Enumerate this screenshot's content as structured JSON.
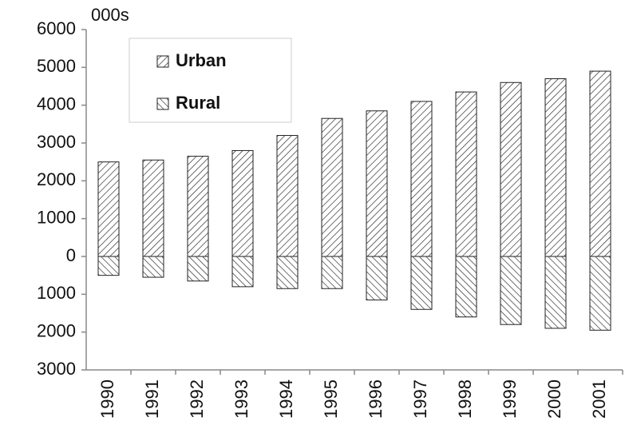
{
  "chart_data": {
    "type": "bar",
    "y_label": "000s",
    "categories": [
      "1990",
      "1991",
      "1992",
      "1993",
      "1994",
      "1995",
      "1996",
      "1997",
      "1998",
      "1999",
      "2000",
      "2001"
    ],
    "series": [
      {
        "name": "Urban",
        "color": "#222222",
        "values": [
          2500,
          2550,
          2650,
          2800,
          3200,
          3650,
          3850,
          4100,
          4350,
          4600,
          4700,
          4900
        ]
      },
      {
        "name": "Rural",
        "color": "#222222",
        "values": [
          -500,
          -550,
          -650,
          -800,
          -850,
          -850,
          -1150,
          -1400,
          -1600,
          -1800,
          -1900,
          -1950
        ]
      }
    ],
    "ylim": [
      -3000,
      6000
    ],
    "yticks": [
      {
        "value": -3000,
        "label": "3000"
      },
      {
        "value": -2000,
        "label": "2000"
      },
      {
        "value": -1000,
        "label": "1000"
      },
      0,
      1000,
      2000,
      3000,
      4000,
      5000,
      6000
    ],
    "legend": "top-left"
  }
}
